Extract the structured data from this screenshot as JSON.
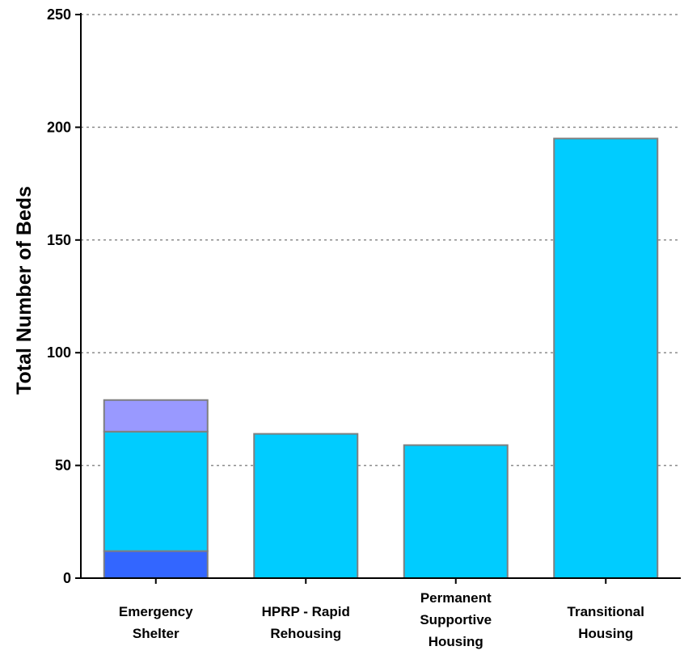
{
  "chart_data": {
    "type": "bar",
    "stacked": true,
    "ylabel": "Total Number of Beds",
    "xlabel": "",
    "title": "",
    "ylim": [
      0,
      250
    ],
    "yticks": [
      "0",
      "50",
      "100",
      "150",
      "200",
      "250"
    ],
    "grid": true,
    "categories": [
      [
        "Emergency",
        "Shelter"
      ],
      [
        "HPRP - Rapid",
        "Rehousing"
      ],
      [
        "Permanent",
        "Supportive",
        "Housing"
      ],
      [
        "Transitional",
        "Housing"
      ]
    ],
    "series": [
      {
        "color": "#3366ff",
        "values": [
          12,
          0,
          0,
          0
        ]
      },
      {
        "color": "#00ccff",
        "values": [
          53,
          64,
          59,
          195
        ]
      },
      {
        "color": "#9999ff",
        "values": [
          14,
          0,
          0,
          0
        ]
      }
    ]
  }
}
